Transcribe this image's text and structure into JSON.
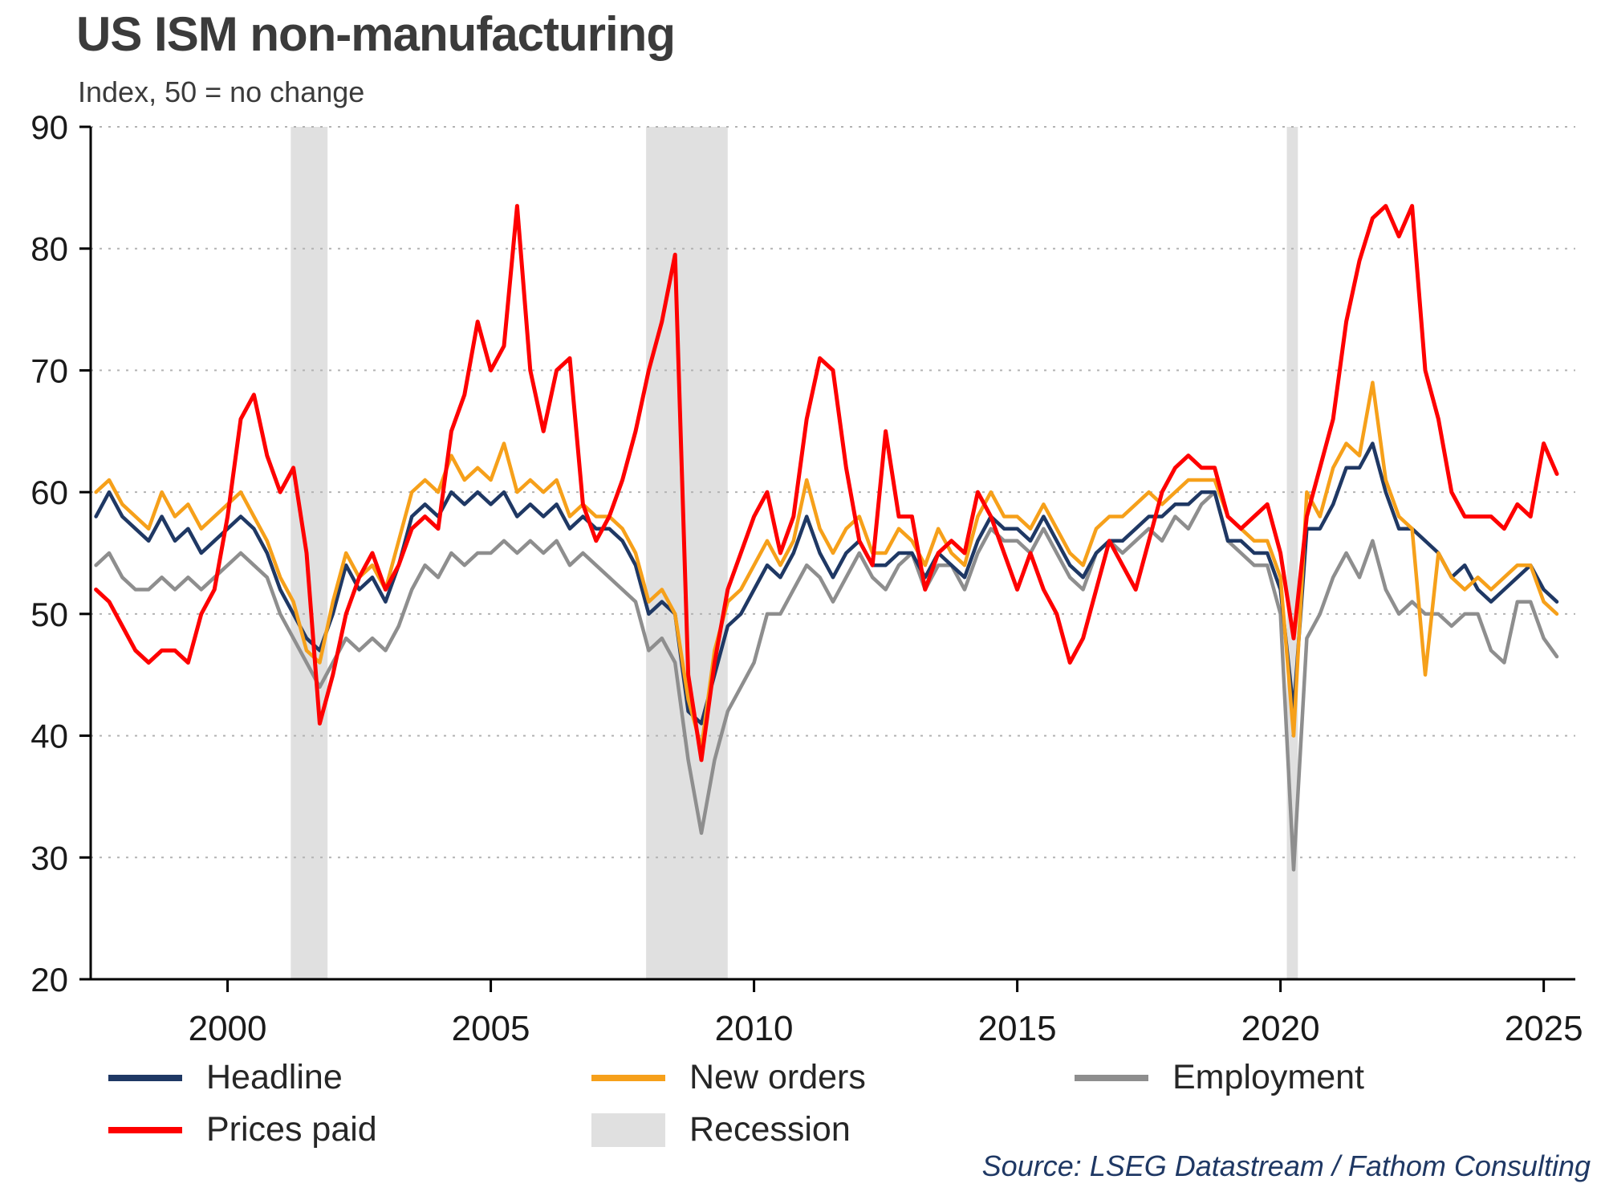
{
  "title": "US ISM non-manufacturing",
  "subtitle": "Index, 50 = no change",
  "source": "Source: LSEG Datastream / Fathom Consulting",
  "legend": [
    {
      "label": "Headline",
      "type": "line",
      "color": "#1F3864"
    },
    {
      "label": "New orders",
      "type": "line",
      "color": "#F6A01A"
    },
    {
      "label": "Employment",
      "type": "line",
      "color": "#8E8E8E"
    },
    {
      "label": "Prices paid",
      "type": "line",
      "color": "#FE0000"
    },
    {
      "label": "Recession",
      "type": "box",
      "color": "#E0E0E0"
    }
  ],
  "chart_data": {
    "type": "line",
    "title": "US ISM non-manufacturing",
    "subtitle": "Index, 50 = no change",
    "xlabel": "",
    "ylabel": "Index, 50 = no change",
    "xlim": [
      1997.4,
      2025.6
    ],
    "ylim": [
      20,
      90
    ],
    "yticks": [
      20,
      30,
      40,
      50,
      60,
      70,
      80,
      90
    ],
    "xticks": [
      2000,
      2005,
      2010,
      2015,
      2020,
      2025
    ],
    "grid": "dotted-horizontal",
    "legend_position": "bottom",
    "recession_color": "#E0E0E0",
    "recession_bands": [
      [
        2001.2,
        2001.9
      ],
      [
        2007.95,
        2009.5
      ],
      [
        2020.12,
        2020.33
      ]
    ],
    "x_start": 1997.5,
    "x_step": 0.25,
    "series": [
      {
        "name": "Headline",
        "color": "#1F3864",
        "width": 4.5,
        "values": [
          58,
          60,
          58,
          57,
          56,
          58,
          56,
          57,
          55,
          56,
          57,
          58,
          57,
          55,
          52,
          50,
          48,
          47,
          50,
          54,
          52,
          53,
          51,
          54,
          58,
          59,
          58,
          60,
          59,
          60,
          59,
          60,
          58,
          59,
          58,
          59,
          57,
          58,
          57,
          57,
          56,
          54,
          50,
          51,
          50,
          42,
          41,
          45,
          49,
          50,
          52,
          54,
          53,
          55,
          58,
          55,
          53,
          55,
          56,
          54,
          54,
          55,
          55,
          53,
          55,
          54,
          53,
          56,
          58,
          57,
          57,
          56,
          58,
          56,
          54,
          53,
          55,
          56,
          56,
          57,
          58,
          58,
          59,
          59,
          60,
          60,
          56,
          56,
          55,
          55,
          52,
          42,
          57,
          57,
          59,
          62,
          62,
          64,
          60,
          57,
          57,
          56,
          55,
          53,
          54,
          52,
          51,
          52,
          53,
          54,
          52,
          51
        ]
      },
      {
        "name": "New orders",
        "color": "#F6A01A",
        "width": 4.5,
        "values": [
          60,
          61,
          59,
          58,
          57,
          60,
          58,
          59,
          57,
          58,
          59,
          60,
          58,
          56,
          53,
          51,
          47,
          46,
          51,
          55,
          53,
          54,
          52,
          56,
          60,
          61,
          60,
          63,
          61,
          62,
          61,
          64,
          60,
          61,
          60,
          61,
          58,
          59,
          58,
          58,
          57,
          55,
          51,
          52,
          50,
          43,
          39,
          47,
          51,
          52,
          54,
          56,
          54,
          56,
          61,
          57,
          55,
          57,
          58,
          55,
          55,
          57,
          56,
          54,
          57,
          55,
          54,
          58,
          60,
          58,
          58,
          57,
          59,
          57,
          55,
          54,
          57,
          58,
          58,
          59,
          60,
          59,
          60,
          61,
          61,
          61,
          58,
          57,
          56,
          56,
          53,
          40,
          60,
          58,
          62,
          64,
          63,
          69,
          61,
          58,
          57,
          45,
          55,
          53,
          52,
          53,
          52,
          53,
          54,
          54,
          51,
          50
        ]
      },
      {
        "name": "Employment",
        "color": "#8E8E8E",
        "width": 4.5,
        "values": [
          54,
          55,
          53,
          52,
          52,
          53,
          52,
          53,
          52,
          53,
          54,
          55,
          54,
          53,
          50,
          48,
          46,
          44,
          46,
          48,
          47,
          48,
          47,
          49,
          52,
          54,
          53,
          55,
          54,
          55,
          55,
          56,
          55,
          56,
          55,
          56,
          54,
          55,
          54,
          53,
          52,
          51,
          47,
          48,
          46,
          38,
          32,
          38,
          42,
          44,
          46,
          50,
          50,
          52,
          54,
          53,
          51,
          53,
          55,
          53,
          52,
          54,
          55,
          52,
          54,
          54,
          52,
          55,
          57,
          56,
          56,
          55,
          57,
          55,
          53,
          52,
          55,
          56,
          55,
          56,
          57,
          56,
          58,
          57,
          59,
          60,
          56,
          55,
          54,
          54,
          50,
          29,
          48,
          50,
          53,
          55,
          53,
          56,
          52,
          50,
          51,
          50,
          50,
          49,
          50,
          50,
          47,
          46,
          51,
          51,
          48,
          46.5
        ]
      },
      {
        "name": "Prices paid",
        "color": "#FE0000",
        "width": 5,
        "values": [
          52,
          51,
          49,
          47,
          46,
          47,
          47,
          46,
          50,
          52,
          58,
          66,
          68,
          63,
          60,
          62,
          55,
          41,
          45,
          50,
          53,
          55,
          52,
          54,
          57,
          58,
          57,
          65,
          68,
          74,
          70,
          72,
          83.5,
          70,
          65,
          70,
          71,
          59,
          56,
          58,
          61,
          65,
          70,
          74,
          79.5,
          45,
          38,
          46,
          52,
          55,
          58,
          60,
          55,
          58,
          66,
          71,
          70,
          62,
          56,
          54,
          65,
          58,
          58,
          52,
          55,
          56,
          55,
          60,
          58,
          55,
          52,
          55,
          52,
          50,
          46,
          48,
          52,
          56,
          54,
          52,
          56,
          60,
          62,
          63,
          62,
          62,
          58,
          57,
          58,
          59,
          55,
          48,
          58,
          62,
          66,
          74,
          79,
          82.5,
          83.5,
          81,
          83.5,
          70,
          66,
          60,
          58,
          58,
          58,
          57,
          59,
          58,
          64,
          61.5
        ]
      }
    ]
  }
}
